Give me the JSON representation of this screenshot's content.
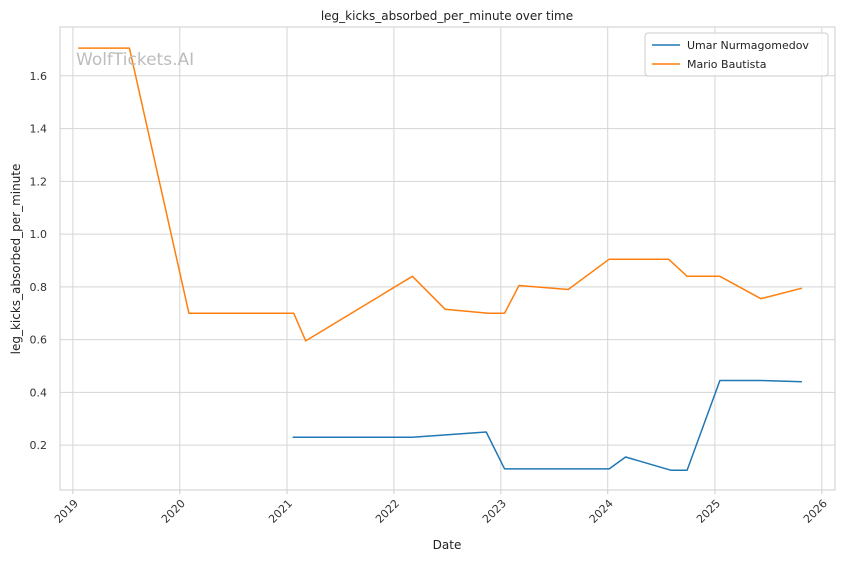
{
  "watermark": "WolfTickets.AI",
  "chart_data": {
    "type": "line",
    "title": "leg_kicks_absorbed_per_minute over time",
    "xlabel": "Date",
    "ylabel": "leg_kicks_absorbed_per_minute",
    "xlim": [
      "2018-11-18",
      "2026-02-15"
    ],
    "ylim": [
      0.03,
      1.785
    ],
    "x_ticks": [
      "2019",
      "2020",
      "2021",
      "2022",
      "2023",
      "2024",
      "2025",
      "2026"
    ],
    "y_ticks": [
      "0.2",
      "0.4",
      "0.6",
      "0.8",
      "1.0",
      "1.2",
      "1.4",
      "1.6"
    ],
    "grid": true,
    "legend_position": "top-right",
    "colors": {
      "Umar Nurmagomedov": "#1f77b4",
      "Mario Bautista": "#ff7f0e"
    },
    "series": [
      {
        "name": "Umar Nurmagomedov",
        "x": [
          "2021-01-20",
          "2022-03-05",
          "2022-11-12",
          "2023-01-14",
          "2024-01-06",
          "2024-03-02",
          "2024-08-03",
          "2024-09-28",
          "2025-01-18",
          "2025-06-07",
          "2025-10-25"
        ],
        "y": [
          0.23,
          0.23,
          0.25,
          0.11,
          0.11,
          0.155,
          0.105,
          0.105,
          0.445,
          0.445,
          0.44
        ]
      },
      {
        "name": "Mario Bautista",
        "x": [
          "2019-01-19",
          "2019-07-13",
          "2020-02-01",
          "2021-01-24",
          "2021-03-06",
          "2022-03-05",
          "2022-06-25",
          "2022-11-19",
          "2023-01-14",
          "2023-03-04",
          "2023-08-19",
          "2024-01-06",
          "2024-07-27",
          "2024-09-28",
          "2025-01-18",
          "2025-06-07",
          "2025-10-25"
        ],
        "y": [
          1.705,
          1.705,
          0.7,
          0.7,
          0.595,
          0.84,
          0.715,
          0.7,
          0.7,
          0.805,
          0.79,
          0.905,
          0.905,
          0.84,
          0.84,
          0.755,
          0.795
        ]
      }
    ]
  }
}
